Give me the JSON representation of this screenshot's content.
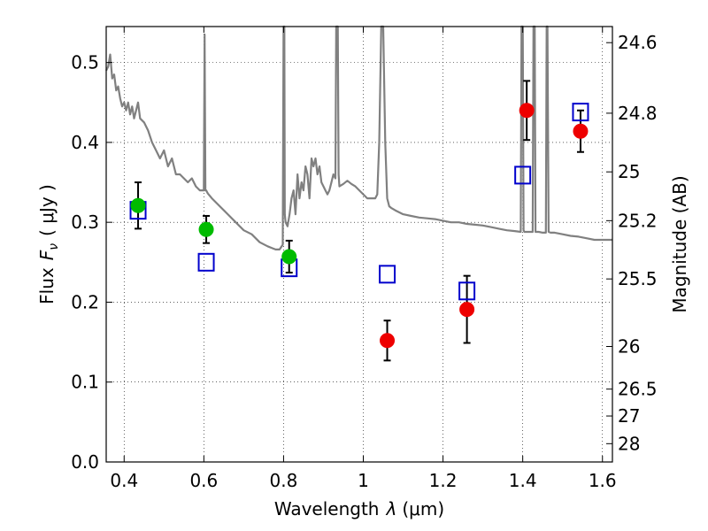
{
  "chart_data": {
    "type": "scatter",
    "xlabel_prefix": "Wavelength",
    "xlabel_symbol": "λ",
    "xlabel_unit": "(μm)",
    "ylabel_prefix": "Flux",
    "ylabel_symbol": "F",
    "ylabel_subscript": "ν",
    "ylabel_unit": "( μJy )",
    "y2label": "Magnitude (AB)",
    "xlim": [
      0.355,
      1.625
    ],
    "ylim": [
      0.0,
      0.545
    ],
    "x_ticks": [
      0.4,
      0.6,
      0.8,
      1.0,
      1.2,
      1.4,
      1.6
    ],
    "x_tick_labels": [
      "0.4",
      "0.6",
      "0.8",
      "1",
      "1.2",
      "1.4",
      "1.6"
    ],
    "y_ticks": [
      0.0,
      0.1,
      0.2,
      0.3,
      0.4,
      0.5
    ],
    "y_tick_labels": [
      "0.0",
      "0.1",
      "0.2",
      "0.3",
      "0.4",
      "0.5"
    ],
    "y2_ticks": [
      24.6,
      24.8,
      25.0,
      25.2,
      25.5,
      26.0,
      26.5,
      27.0,
      28.0
    ],
    "y2_tick_labels": [
      "24.6",
      "24.8",
      "25",
      "25.2",
      "25.5",
      "26",
      "26.5",
      "27",
      "28"
    ],
    "grid": true,
    "colors": {
      "model": "#808080",
      "optical": "#00bb00",
      "nir": "#ee0000",
      "predicted": "#0000cc",
      "errorbar": "#000000"
    },
    "series": [
      {
        "kind": "points",
        "color_key": "optical",
        "x": [
          0.435,
          0.606,
          0.814
        ],
        "y": [
          0.321,
          0.291,
          0.257
        ],
        "err": [
          0.029,
          0.017,
          0.02
        ]
      },
      {
        "kind": "points",
        "color_key": "nir",
        "x": [
          1.06,
          1.26,
          1.41,
          1.545
        ],
        "y": [
          0.152,
          0.191,
          0.44,
          0.414
        ],
        "err": [
          0.025,
          0.042,
          0.037,
          0.026
        ]
      },
      {
        "kind": "squares",
        "color_key": "predicted",
        "x": [
          0.435,
          0.606,
          0.814,
          1.06,
          1.26,
          1.4,
          1.545
        ],
        "y": [
          0.315,
          0.25,
          0.243,
          0.235,
          0.214,
          0.359,
          0.438
        ]
      },
      {
        "kind": "line",
        "color_key": "model",
        "x": [
          0.355,
          0.36,
          0.365,
          0.37,
          0.375,
          0.38,
          0.385,
          0.39,
          0.395,
          0.4,
          0.405,
          0.41,
          0.415,
          0.42,
          0.425,
          0.43,
          0.435,
          0.44,
          0.45,
          0.46,
          0.47,
          0.48,
          0.49,
          0.5,
          0.51,
          0.52,
          0.53,
          0.54,
          0.55,
          0.56,
          0.57,
          0.58,
          0.59,
          0.6,
          0.602,
          0.604,
          0.606,
          0.608,
          0.61,
          0.62,
          0.64,
          0.66,
          0.68,
          0.7,
          0.72,
          0.74,
          0.76,
          0.77,
          0.78,
          0.79,
          0.798,
          0.8,
          0.802,
          0.803,
          0.805,
          0.81,
          0.815,
          0.82,
          0.825,
          0.83,
          0.835,
          0.84,
          0.845,
          0.85,
          0.855,
          0.86,
          0.865,
          0.87,
          0.875,
          0.88,
          0.885,
          0.89,
          0.895,
          0.9,
          0.905,
          0.91,
          0.915,
          0.92,
          0.925,
          0.93,
          0.932,
          0.934,
          0.936,
          0.938,
          0.94,
          0.95,
          0.96,
          0.97,
          0.98,
          0.99,
          1.0,
          1.01,
          1.02,
          1.03,
          1.035,
          1.04,
          1.045,
          1.05,
          1.055,
          1.06,
          1.065,
          1.07,
          1.08,
          1.1,
          1.12,
          1.14,
          1.16,
          1.18,
          1.2,
          1.22,
          1.24,
          1.26,
          1.28,
          1.3,
          1.32,
          1.34,
          1.36,
          1.38,
          1.395,
          1.397,
          1.399,
          1.4,
          1.402,
          1.404,
          1.41,
          1.42,
          1.425,
          1.427,
          1.43,
          1.432,
          1.44,
          1.45,
          1.458,
          1.46,
          1.462,
          1.465,
          1.47,
          1.48,
          1.5,
          1.52,
          1.54,
          1.56,
          1.58,
          1.6,
          1.625
        ],
        "y": [
          0.49,
          0.495,
          0.51,
          0.48,
          0.485,
          0.465,
          0.47,
          0.455,
          0.445,
          0.45,
          0.44,
          0.45,
          0.435,
          0.445,
          0.43,
          0.44,
          0.45,
          0.43,
          0.425,
          0.415,
          0.4,
          0.39,
          0.38,
          0.39,
          0.37,
          0.38,
          0.36,
          0.36,
          0.355,
          0.35,
          0.355,
          0.345,
          0.34,
          0.34,
          0.535,
          0.34,
          0.34,
          0.338,
          0.336,
          0.33,
          0.32,
          0.31,
          0.3,
          0.29,
          0.285,
          0.275,
          0.27,
          0.268,
          0.266,
          0.266,
          0.272,
          0.545,
          0.545,
          0.31,
          0.3,
          0.295,
          0.31,
          0.33,
          0.34,
          0.31,
          0.36,
          0.33,
          0.35,
          0.34,
          0.37,
          0.36,
          0.33,
          0.38,
          0.37,
          0.38,
          0.36,
          0.37,
          0.35,
          0.345,
          0.34,
          0.335,
          0.34,
          0.35,
          0.36,
          0.355,
          0.545,
          0.545,
          0.545,
          0.36,
          0.345,
          0.348,
          0.352,
          0.348,
          0.345,
          0.34,
          0.335,
          0.33,
          0.33,
          0.33,
          0.335,
          0.4,
          0.545,
          0.545,
          0.4,
          0.33,
          0.32,
          0.318,
          0.315,
          0.31,
          0.308,
          0.306,
          0.305,
          0.304,
          0.302,
          0.3,
          0.3,
          0.298,
          0.297,
          0.296,
          0.294,
          0.292,
          0.29,
          0.289,
          0.288,
          0.545,
          0.545,
          0.545,
          0.29,
          0.288,
          0.288,
          0.288,
          0.288,
          0.545,
          0.545,
          0.288,
          0.288,
          0.287,
          0.287,
          0.545,
          0.545,
          0.288,
          0.287,
          0.287,
          0.285,
          0.283,
          0.282,
          0.28,
          0.278,
          0.278,
          0.278
        ]
      }
    ]
  }
}
